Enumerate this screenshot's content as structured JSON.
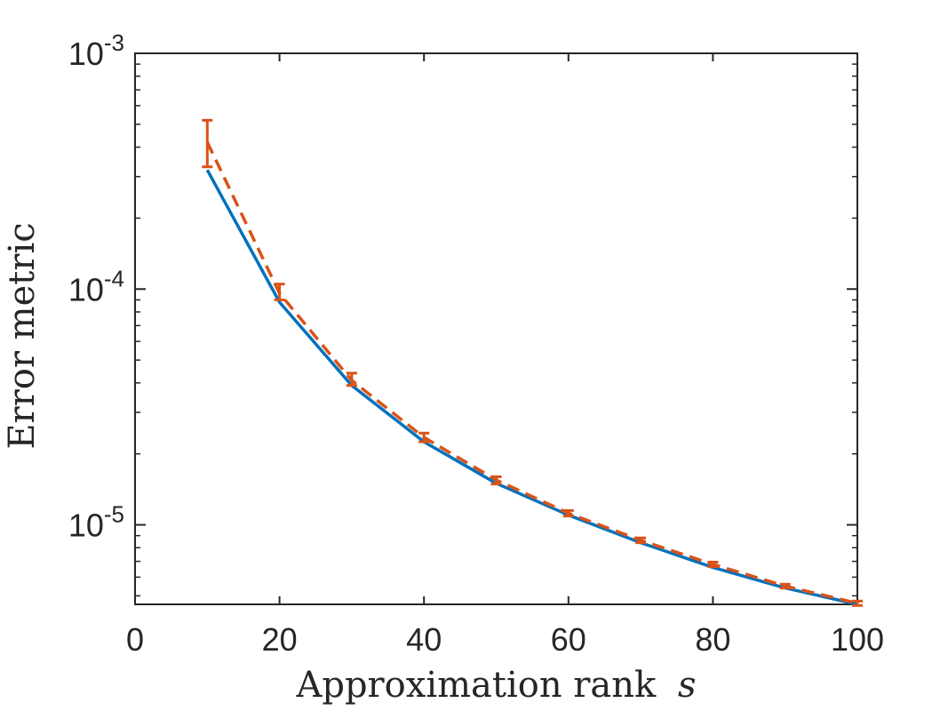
{
  "chart_data": {
    "type": "line",
    "xlabel": "Approximation rank",
    "xlabel_symbol": "s",
    "ylabel": "Error metric",
    "xlim": [
      0,
      100
    ],
    "ylim": [
      4.6e-06,
      0.001
    ],
    "yscale": "log",
    "grid": false,
    "box": true,
    "x_ticks": [
      0,
      20,
      40,
      60,
      80,
      100
    ],
    "y_ticks": [
      {
        "value": 1e-05,
        "base": "10",
        "exponent": "-5"
      },
      {
        "value": 0.0001,
        "base": "10",
        "exponent": "-4"
      },
      {
        "value": 0.001,
        "base": "10",
        "exponent": "-3"
      }
    ],
    "x": [
      10,
      20,
      30,
      40,
      50,
      60,
      70,
      80,
      90,
      100
    ],
    "series": [
      {
        "style": "solid",
        "color": "#0072BD",
        "values": [
          0.00032,
          8.8e-05,
          3.9e-05,
          2.25e-05,
          1.5e-05,
          1.1e-05,
          8.4e-06,
          6.6e-06,
          5.4e-06,
          4.6e-06
        ]
      },
      {
        "style": "dashed",
        "color": "#D95319",
        "error_bars": true,
        "values": [
          0.00042,
          9.6e-05,
          4.1e-05,
          2.35e-05,
          1.55e-05,
          1.12e-05,
          8.6e-06,
          6.8e-06,
          5.5e-06,
          4.65e-06
        ],
        "lower": [
          0.00033,
          9e-05,
          3.9e-05,
          2.25e-05,
          1.49e-05,
          1.09e-05,
          8.4e-06,
          6.65e-06,
          5.4e-06,
          4.55e-06
        ],
        "upper": [
          0.00052,
          0.000105,
          4.4e-05,
          2.45e-05,
          1.6e-05,
          1.15e-05,
          8.8e-06,
          6.95e-06,
          5.6e-06,
          4.75e-06
        ]
      }
    ]
  }
}
